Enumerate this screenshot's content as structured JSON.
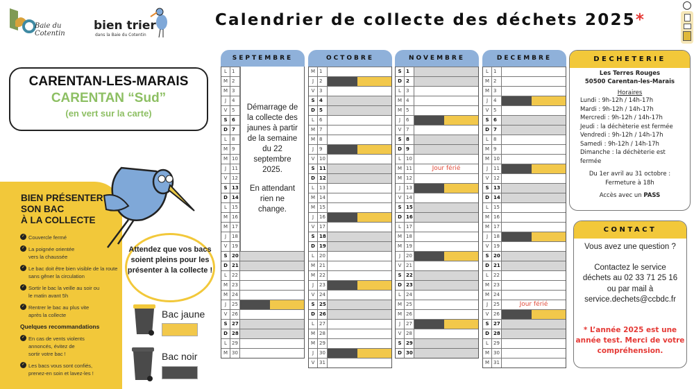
{
  "title": {
    "text": "Calendrier de collecte des déchets 2025",
    "asterisk": "*"
  },
  "logos": {
    "ccbdc": "Baie du Cotentin",
    "bien_trier": "bien trier",
    "bien_trier_sub": "dans la Baie du Cotentin"
  },
  "location": {
    "commune": "CARENTAN-LES-MARAIS",
    "sector": "CARENTAN “Sud”",
    "note": "(en vert sur la carte)"
  },
  "presentation": {
    "heading": [
      "BIEN PRÉSENTER",
      "SON BAC",
      "À LA COLLECTE"
    ],
    "tips": [
      "Couvercle fermé",
      "La poignée orientée vers la chaussée",
      "Le bac doit être bien visible de la route sans gêner la circulation",
      "Sortir le bac la veille au soir ou le matin avant 5h",
      "Rentrer le bac au plus vite après la collecte"
    ],
    "recommendations_title": "Quelques recommandations",
    "recommendations": [
      "En cas de vents violents annoncés, évitez de sortir votre bac !",
      "Les bacs vous sont confiés, prenez-en soin et lavez-les !"
    ]
  },
  "bubble": "Attendez que vos bacs soient pleins pour les présenter à la collecte !",
  "legend": [
    {
      "label": "Bac jaune",
      "color": "#f2c84b"
    },
    {
      "label": "Bac noir",
      "color": "#4d4d4d"
    }
  ],
  "colors": {
    "header_blue": "#8fb1da",
    "yellow": "#f2c83a",
    "weekend_grey": "#d6d6d6",
    "holiday_red": "#e04b3a",
    "sector_green": "#8dbf63"
  },
  "months": [
    {
      "name": "SEPTEMBRE",
      "letters": [
        "L",
        "M",
        "M",
        "J",
        "V",
        "S",
        "D",
        "L",
        "M",
        "M",
        "J",
        "V",
        "S",
        "D",
        "L",
        "M",
        "M",
        "J",
        "V",
        "S",
        "D",
        "L",
        "M",
        "M",
        "J",
        "V",
        "S",
        "D",
        "L",
        "M"
      ],
      "collection_days": [
        25
      ],
      "holidays": [],
      "note": {
        "until_day": 19,
        "lines": [
          "Démarrage de la collecte des jaunes à partir de la semaine du 22 septembre 2025.",
          "En attendant rien ne change."
        ]
      }
    },
    {
      "name": "OCTOBRE",
      "letters": [
        "M",
        "J",
        "V",
        "S",
        "D",
        "L",
        "M",
        "M",
        "J",
        "V",
        "S",
        "D",
        "L",
        "M",
        "M",
        "J",
        "V",
        "S",
        "D",
        "L",
        "M",
        "M",
        "J",
        "V",
        "S",
        "D",
        "L",
        "M",
        "M",
        "J",
        "V"
      ],
      "collection_days": [
        2,
        9,
        16,
        23,
        30
      ],
      "holidays": []
    },
    {
      "name": "NOVEMBRE",
      "letters": [
        "S",
        "D",
        "L",
        "M",
        "M",
        "J",
        "V",
        "S",
        "D",
        "L",
        "M",
        "M",
        "J",
        "V",
        "S",
        "D",
        "L",
        "M",
        "M",
        "J",
        "V",
        "S",
        "D",
        "L",
        "M",
        "M",
        "J",
        "V",
        "S",
        "D"
      ],
      "collection_days": [
        6,
        13,
        20,
        27
      ],
      "holidays": [
        {
          "day": 11,
          "label": "Jour férié"
        }
      ]
    },
    {
      "name": "DECEMBRE",
      "letters": [
        "L",
        "M",
        "M",
        "J",
        "V",
        "S",
        "D",
        "L",
        "M",
        "M",
        "J",
        "V",
        "S",
        "D",
        "L",
        "M",
        "M",
        "J",
        "V",
        "S",
        "D",
        "L",
        "M",
        "M",
        "J",
        "V",
        "S",
        "D",
        "L",
        "M",
        "M"
      ],
      "collection_days": [
        4,
        11,
        18,
        26
      ],
      "holidays": [
        {
          "day": 25,
          "label": "Jour férié"
        }
      ]
    }
  ],
  "decheterie": {
    "title": "DECHETERIE",
    "address": [
      "Les Terres Rouges",
      "50500 Carentan-les-Marais"
    ],
    "hours_title": "Horaires",
    "hours": [
      "Lundi : 9h-12h / 14h-17h",
      "Mardi : 9h-12h / 14h-17h",
      "Mercredi : 9h-12h / 14h-17h",
      "Jeudi : la déchèterie est fermée",
      "Vendredi : 9h-12h / 14h-17h",
      "Samedi : 9h-12h / 14h-17h",
      "Dimanche :  la déchèterie est fermée"
    ],
    "season": [
      "Du 1er avril au 31 octobre :",
      "Fermeture à 18h"
    ],
    "access_prefix": "Accès avec un ",
    "access_bold": "PASS"
  },
  "contact": {
    "title": "CONTACT",
    "question": "Vous avez une question ?",
    "lines": [
      "Contactez le service",
      "déchets au 02 33 71 25 16",
      "ou par mail à",
      "service.dechets@ccbdc.fr"
    ],
    "disclaimer": "* L’année 2025 est une année test. Merci de votre compréhension."
  }
}
